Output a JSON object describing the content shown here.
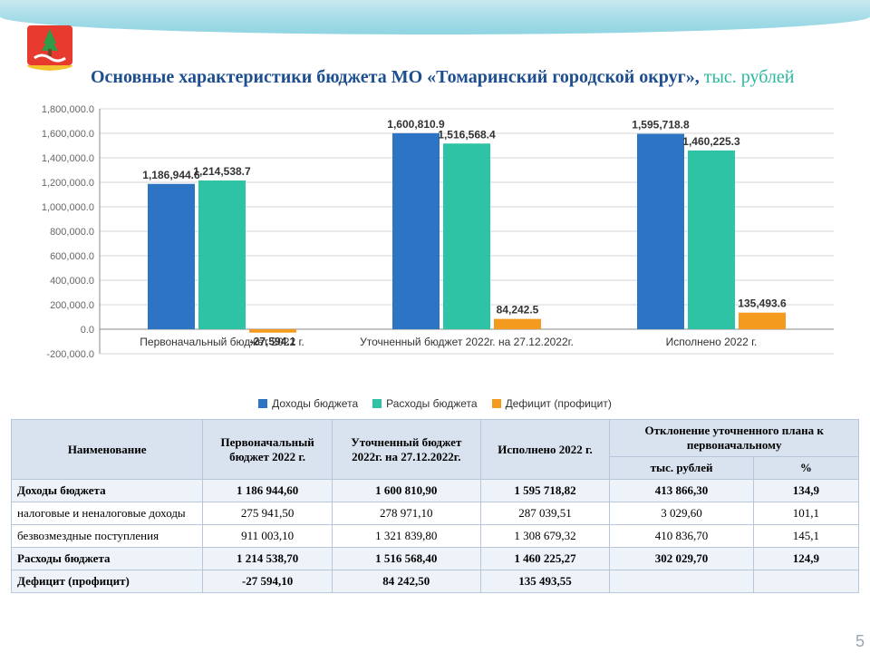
{
  "title_main": "Основные характеристики бюджета МО «Томаринский городской округ»,",
  "title_sub": " тыс. рублей",
  "page_number": "5",
  "chart": {
    "type": "bar-grouped",
    "ylim": [
      -200000,
      1800000
    ],
    "ytick_step": 200000,
    "yticks": [
      "-200,000.0",
      "0.0",
      "200,000.0",
      "400,000.0",
      "600,000.0",
      "800,000.0",
      "1,000,000.0",
      "1,200,000.0",
      "1,400,000.0",
      "1,600,000.0",
      "1,800,000.0"
    ],
    "categories": [
      "Первоначальный бюджет 2022 г.",
      "Уточненный бюджет 2022г. на 27.12.2022г.",
      "Исполнено 2022 г."
    ],
    "series": [
      {
        "label": "Доходы бюджета",
        "color": "#2e74c4",
        "values": [
          1186944.6,
          1600810.9,
          1595718.8
        ],
        "value_labels": [
          "1,186,944.6",
          "1,600,810.9",
          "1,595,718.8"
        ]
      },
      {
        "label": "Расходы бюджета",
        "color": "#2dc3a4",
        "values": [
          1214538.7,
          1516568.4,
          1460225.3
        ],
        "value_labels": [
          "1,214,538.7",
          "1,516,568.4",
          "1,460,225.3"
        ]
      },
      {
        "label": "Дефицит (профицит)",
        "color": "#f39a1f",
        "values": [
          -27594.1,
          84242.5,
          135493.6
        ],
        "value_labels": [
          "-27,594.1",
          "84,242.5",
          "135,493.6"
        ]
      }
    ]
  },
  "legend": [
    "Доходы бюджета",
    "Расходы бюджета",
    "Дефицит (профицит)"
  ],
  "table": {
    "header1": [
      "Наименование",
      "Первоначальный бюджет 2022 г.",
      "Уточненный бюджет 2022г. на 27.12.2022г.",
      "Исполнено 2022 г.",
      "Отклонение уточненного плана к первоначальному"
    ],
    "header2": [
      "тыс. рублей",
      "%"
    ],
    "rows": [
      {
        "bold": true,
        "cells": [
          "Доходы бюджета",
          "1 186 944,60",
          "1 600 810,90",
          "1 595 718,82",
          "413 866,30",
          "134,9"
        ]
      },
      {
        "bold": false,
        "cells": [
          "  налоговые и неналоговые доходы",
          "275 941,50",
          "278 971,10",
          "287 039,51",
          "3 029,60",
          "101,1"
        ]
      },
      {
        "bold": false,
        "cells": [
          "  безвозмездные поступления",
          "911 003,10",
          "1 321 839,80",
          "1 308 679,32",
          "410 836,70",
          "145,1"
        ]
      },
      {
        "bold": true,
        "cells": [
          "Расходы бюджета",
          "1 214 538,70",
          "1 516 568,40",
          "1 460 225,27",
          "302 029,70",
          "124,9"
        ]
      },
      {
        "bold": true,
        "cells": [
          "Дефицит (профицит)",
          "-27 594,10",
          "84 242,50",
          "135 493,55",
          "",
          ""
        ]
      }
    ]
  }
}
